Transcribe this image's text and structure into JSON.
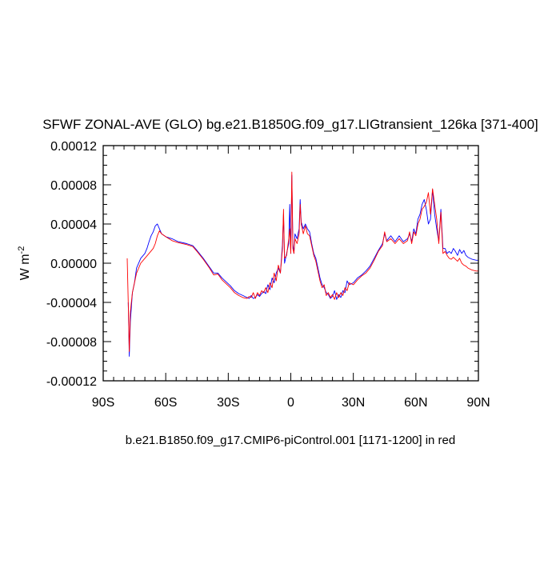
{
  "chart_data": {
    "type": "line",
    "title": "SFWF ZONAL-AVE (GLO) bg.e21.B1850G.f09_g17.LIGtransient_126ka [371-400]",
    "ylabel": "W m",
    "ylabel_sup": "-2",
    "footnote": "b.e21.B1850.f09_g17.CMIP6-piControl.001 [1171-1200] in red",
    "xlim": [
      -90,
      90
    ],
    "ylim": [
      -0.00012,
      0.00012
    ],
    "x_ticks": [
      -90,
      -60,
      -30,
      0,
      30,
      60,
      90
    ],
    "x_tick_labels": [
      "90S",
      "60S",
      "30S",
      "0",
      "30N",
      "60N",
      "90N"
    ],
    "y_ticks": [
      -0.00012,
      -8e-05,
      -4e-05,
      0,
      4e-05,
      8e-05,
      0.00012
    ],
    "y_tick_labels": [
      "-0.00012",
      "-0.00008",
      "-0.00004",
      "0.00000",
      "0.00004",
      "0.00008",
      "0.00012"
    ],
    "grid": false,
    "series": [
      {
        "color": "#0000ff",
        "points": [
          [
            -78,
            -4e-05
          ],
          [
            -77.5,
            -9.5e-05
          ],
          [
            -77,
            -6e-05
          ],
          [
            -76,
            -3e-05
          ],
          [
            -75,
            -2e-05
          ],
          [
            -74,
            -5e-06
          ],
          [
            -72,
            5e-06
          ],
          [
            -70,
            1e-05
          ],
          [
            -69,
            1.5e-05
          ],
          [
            -68,
            2.2e-05
          ],
          [
            -67,
            2.8e-05
          ],
          [
            -66,
            3.2e-05
          ],
          [
            -65,
            3.8e-05
          ],
          [
            -64,
            4e-05
          ],
          [
            -63,
            3.5e-05
          ],
          [
            -62,
            3e-05
          ],
          [
            -60,
            2.7e-05
          ],
          [
            -57,
            2.5e-05
          ],
          [
            -54,
            2.2e-05
          ],
          [
            -50,
            2e-05
          ],
          [
            -47,
            1.8e-05
          ],
          [
            -45,
            1.3e-05
          ],
          [
            -42,
            5e-06
          ],
          [
            -39,
            -4e-06
          ],
          [
            -37,
            -1e-05
          ],
          [
            -35,
            -1e-05
          ],
          [
            -33,
            -1.5e-05
          ],
          [
            -31,
            -1.9e-05
          ],
          [
            -29,
            -2.3e-05
          ],
          [
            -27,
            -2.8e-05
          ],
          [
            -25,
            -3.1e-05
          ],
          [
            -23,
            -3.3e-05
          ],
          [
            -21,
            -3.5e-05
          ],
          [
            -20,
            -3.6e-05
          ],
          [
            -19,
            -3.3e-05
          ],
          [
            -18,
            -3.6e-05
          ],
          [
            -17,
            -3.5e-05
          ],
          [
            -16,
            -3.2e-05
          ],
          [
            -15,
            -3.4e-05
          ],
          [
            -14,
            -3.1e-05
          ],
          [
            -13,
            -2.9e-05
          ],
          [
            -12,
            -3.1e-05
          ],
          [
            -11,
            -2.2e-05
          ],
          [
            -10,
            -2.7e-05
          ],
          [
            -9,
            -1.5e-05
          ],
          [
            -8,
            -2e-05
          ],
          [
            -7,
            -1e-05
          ],
          [
            -6,
            -5e-06
          ],
          [
            -5,
            -1e-05
          ],
          [
            -4,
            2e-05
          ],
          [
            -3.5,
            5e-05
          ],
          [
            -3,
            0
          ],
          [
            -2,
            1e-05
          ],
          [
            -1,
            2e-05
          ],
          [
            -0.5,
            6e-05
          ],
          [
            0,
            1e-05
          ],
          [
            0.5,
            9e-05
          ],
          [
            1,
            2e-05
          ],
          [
            1.5,
            1e-05
          ],
          [
            2,
            3e-05
          ],
          [
            3,
            2.5e-05
          ],
          [
            4,
            3.5e-05
          ],
          [
            4.5,
            6.5e-05
          ],
          [
            5,
            4.2e-05
          ],
          [
            6,
            3.5e-05
          ],
          [
            7,
            4e-05
          ],
          [
            8,
            3.5e-05
          ],
          [
            9,
            3.2e-05
          ],
          [
            10,
            2e-05
          ],
          [
            11,
            1e-05
          ],
          [
            12,
            5e-06
          ],
          [
            13,
            -5e-06
          ],
          [
            14,
            -1.5e-05
          ],
          [
            15,
            -2.2e-05
          ],
          [
            16,
            -2.5e-05
          ],
          [
            17,
            -3e-05
          ],
          [
            18,
            -3.2e-05
          ],
          [
            19,
            -3.6e-05
          ],
          [
            20,
            -3.4e-05
          ],
          [
            21,
            -2.8e-05
          ],
          [
            22,
            -3.7e-05
          ],
          [
            23,
            -3.2e-05
          ],
          [
            24,
            -3.5e-05
          ],
          [
            25,
            -2.8e-05
          ],
          [
            26,
            -3e-05
          ],
          [
            27,
            -1.8e-05
          ],
          [
            28,
            -2.2e-05
          ],
          [
            30,
            -2e-05
          ],
          [
            32,
            -1.5e-05
          ],
          [
            34,
            -1.2e-05
          ],
          [
            36,
            -8e-06
          ],
          [
            38,
            -3e-06
          ],
          [
            40,
            5e-06
          ],
          [
            42,
            1.3e-05
          ],
          [
            44,
            2e-05
          ],
          [
            45,
            3e-05
          ],
          [
            46,
            2.3e-05
          ],
          [
            48,
            2.8e-05
          ],
          [
            50,
            2.2e-05
          ],
          [
            52,
            2.8e-05
          ],
          [
            54,
            2.2e-05
          ],
          [
            56,
            2.5e-05
          ],
          [
            57,
            3e-05
          ],
          [
            58,
            2.2e-05
          ],
          [
            59,
            3.5e-05
          ],
          [
            60,
            3e-05
          ],
          [
            61,
            4.5e-05
          ],
          [
            62,
            5e-05
          ],
          [
            63,
            6e-05
          ],
          [
            64,
            6.5e-05
          ],
          [
            65,
            5.5e-05
          ],
          [
            66,
            4e-05
          ],
          [
            67,
            4.5e-05
          ],
          [
            68,
            7.5e-05
          ],
          [
            69,
            5e-05
          ],
          [
            70,
            3.5e-05
          ],
          [
            71,
            2.2e-05
          ],
          [
            72,
            5.5e-05
          ],
          [
            73,
            1.5e-05
          ],
          [
            74,
            1.5e-05
          ],
          [
            75,
            1e-05
          ],
          [
            76,
            1.2e-05
          ],
          [
            77,
            1e-05
          ],
          [
            78,
            1.5e-05
          ],
          [
            79,
            1.2e-05
          ],
          [
            80,
            8e-06
          ],
          [
            81,
            1.4e-05
          ],
          [
            82,
            1e-05
          ],
          [
            83,
            1.3e-05
          ],
          [
            84,
            8e-06
          ],
          [
            85,
            6e-06
          ],
          [
            87,
            4e-06
          ],
          [
            89,
            3e-06
          ],
          [
            90,
            3e-06
          ]
        ]
      },
      {
        "color": "#ff0000",
        "points": [
          [
            -78.5,
            5e-06
          ],
          [
            -78,
            -4e-05
          ],
          [
            -77.5,
            -9e-05
          ],
          [
            -77,
            -5e-05
          ],
          [
            -76,
            -3e-05
          ],
          [
            -75,
            -2e-05
          ],
          [
            -74,
            -1e-05
          ],
          [
            -72,
            0
          ],
          [
            -70,
            5e-06
          ],
          [
            -68,
            1e-05
          ],
          [
            -66,
            1.5e-05
          ],
          [
            -65,
            2e-05
          ],
          [
            -64,
            2.8e-05
          ],
          [
            -63,
            3.3e-05
          ],
          [
            -62,
            3e-05
          ],
          [
            -60,
            2.7e-05
          ],
          [
            -57,
            2.3e-05
          ],
          [
            -54,
            2.1e-05
          ],
          [
            -50,
            1.9e-05
          ],
          [
            -47,
            1.7e-05
          ],
          [
            -45,
            1.2e-05
          ],
          [
            -42,
            4e-06
          ],
          [
            -39,
            -5e-06
          ],
          [
            -37,
            -1.2e-05
          ],
          [
            -35,
            -1.1e-05
          ],
          [
            -33,
            -1.7e-05
          ],
          [
            -31,
            -2.1e-05
          ],
          [
            -29,
            -2.5e-05
          ],
          [
            -27,
            -3e-05
          ],
          [
            -25,
            -3.3e-05
          ],
          [
            -23,
            -3.5e-05
          ],
          [
            -21,
            -3.6e-05
          ],
          [
            -20,
            -3.4e-05
          ],
          [
            -19,
            -3.5e-05
          ],
          [
            -18,
            -3e-05
          ],
          [
            -17,
            -3.6e-05
          ],
          [
            -16,
            -3e-05
          ],
          [
            -15,
            -3.3e-05
          ],
          [
            -14,
            -2.8e-05
          ],
          [
            -13,
            -3e-05
          ],
          [
            -12,
            -2.5e-05
          ],
          [
            -11,
            -3e-05
          ],
          [
            -10,
            -2e-05
          ],
          [
            -9,
            -2.5e-05
          ],
          [
            -8,
            -1e-05
          ],
          [
            -7,
            -1.8e-05
          ],
          [
            -6,
            -2e-06
          ],
          [
            -5,
            -1e-05
          ],
          [
            -4,
            1.5e-05
          ],
          [
            -3.5,
            5.5e-05
          ],
          [
            -3,
            5e-06
          ],
          [
            -2,
            8e-06
          ],
          [
            -1,
            2.5e-05
          ],
          [
            -0.5,
            3.5e-05
          ],
          [
            0,
            1e-05
          ],
          [
            0.5,
            9.3e-05
          ],
          [
            1,
            1.5e-05
          ],
          [
            1.5,
            1e-05
          ],
          [
            2,
            2.5e-05
          ],
          [
            3,
            2e-05
          ],
          [
            4,
            3e-05
          ],
          [
            4.5,
            6e-05
          ],
          [
            5,
            4e-05
          ],
          [
            6,
            3e-05
          ],
          [
            7,
            3.8e-05
          ],
          [
            8,
            3e-05
          ],
          [
            9,
            2.8e-05
          ],
          [
            10,
            1.8e-05
          ],
          [
            11,
            8e-06
          ],
          [
            12,
            2e-06
          ],
          [
            13,
            -8e-06
          ],
          [
            14,
            -1.8e-05
          ],
          [
            15,
            -2.5e-05
          ],
          [
            16,
            -2.2e-05
          ],
          [
            17,
            -3.3e-05
          ],
          [
            18,
            -3e-05
          ],
          [
            19,
            -3.5e-05
          ],
          [
            20,
            -3.2e-05
          ],
          [
            21,
            -3.7e-05
          ],
          [
            22,
            -3e-05
          ],
          [
            23,
            -3.5e-05
          ],
          [
            24,
            -3e-05
          ],
          [
            25,
            -3.3e-05
          ],
          [
            26,
            -2.5e-05
          ],
          [
            27,
            -2.8e-05
          ],
          [
            28,
            -2e-05
          ],
          [
            30,
            -2.2e-05
          ],
          [
            32,
            -1.7e-05
          ],
          [
            34,
            -1.3e-05
          ],
          [
            36,
            -1e-05
          ],
          [
            38,
            -5e-06
          ],
          [
            40,
            3e-06
          ],
          [
            42,
            1.2e-05
          ],
          [
            44,
            1.8e-05
          ],
          [
            45,
            3.2e-05
          ],
          [
            46,
            2.2e-05
          ],
          [
            48,
            2.5e-05
          ],
          [
            50,
            2e-05
          ],
          [
            52,
            2.5e-05
          ],
          [
            54,
            2e-05
          ],
          [
            56,
            2.3e-05
          ],
          [
            57,
            3.2e-05
          ],
          [
            58,
            2e-05
          ],
          [
            59,
            3.2e-05
          ],
          [
            60,
            2.8e-05
          ],
          [
            61,
            4e-05
          ],
          [
            62,
            4.5e-05
          ],
          [
            63,
            5.5e-05
          ],
          [
            64,
            5.8e-05
          ],
          [
            65,
            6.2e-05
          ],
          [
            66,
            7.2e-05
          ],
          [
            67,
            5e-05
          ],
          [
            68,
            7.6e-05
          ],
          [
            69,
            6e-05
          ],
          [
            70,
            4.5e-05
          ],
          [
            71,
            2e-05
          ],
          [
            72,
            5.2e-05
          ],
          [
            73,
            1e-05
          ],
          [
            74,
            1.2e-05
          ],
          [
            75,
            8e-06
          ],
          [
            76,
            5e-06
          ],
          [
            77,
            4e-06
          ],
          [
            78,
            6e-06
          ],
          [
            79,
            4e-06
          ],
          [
            80,
            2e-06
          ],
          [
            81,
            5e-06
          ],
          [
            82,
            0
          ],
          [
            83,
            -2e-06
          ],
          [
            84,
            -3e-06
          ],
          [
            85,
            -5e-06
          ],
          [
            87,
            -7e-06
          ],
          [
            89,
            -8e-06
          ],
          [
            90,
            -8e-06
          ]
        ]
      }
    ]
  }
}
